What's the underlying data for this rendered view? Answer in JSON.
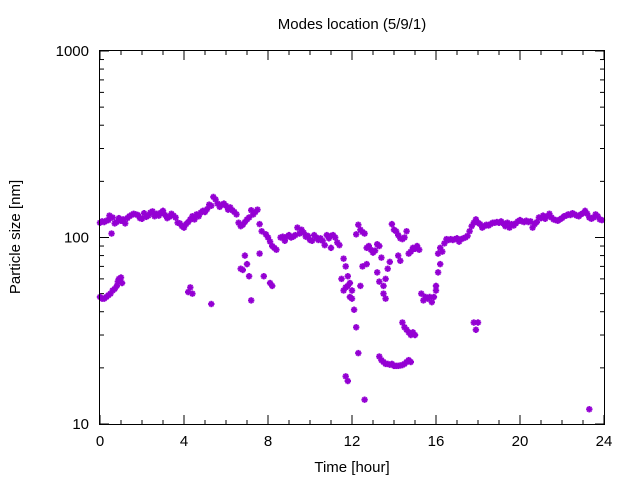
{
  "chart_data": {
    "type": "scatter",
    "title": "Modes location (5/9/1)",
    "xlabel": "Time [hour]",
    "ylabel": "Particle size [nm]",
    "xlim": [
      0,
      24
    ],
    "ylim": [
      10,
      1000
    ],
    "yscale": "log",
    "grid": false,
    "legend": "none",
    "marker_color": "#9400d3",
    "x_ticks": [
      "0",
      "4",
      "8",
      "12",
      "16",
      "20",
      "24"
    ],
    "x_tick_values": [
      0,
      4,
      8,
      12,
      16,
      20,
      24
    ],
    "y_ticks": [
      "10",
      "100",
      "1000"
    ],
    "y_tick_values": [
      10,
      100,
      1000
    ],
    "series": [
      {
        "values": [
          [
            0.0,
            120
          ],
          [
            0.1,
            122
          ],
          [
            0.2,
            121
          ],
          [
            0.3,
            123
          ],
          [
            0.4,
            124
          ],
          [
            0.45,
            131
          ],
          [
            0.55,
            105
          ],
          [
            0.6,
            128
          ],
          [
            0.7,
            119
          ],
          [
            0.8,
            121
          ],
          [
            0.9,
            127
          ],
          [
            1.0,
            123
          ],
          [
            1.1,
            125
          ],
          [
            1.2,
            119
          ],
          [
            1.3,
            127
          ],
          [
            1.4,
            130
          ],
          [
            1.5,
            132
          ],
          [
            1.6,
            134
          ],
          [
            1.7,
            133
          ],
          [
            1.8,
            132
          ],
          [
            1.9,
            127
          ],
          [
            2.0,
            126
          ],
          [
            2.1,
            135
          ],
          [
            2.2,
            129
          ],
          [
            2.3,
            131
          ],
          [
            2.4,
            136
          ],
          [
            2.5,
            138
          ],
          [
            2.6,
            130
          ],
          [
            2.7,
            134
          ],
          [
            2.8,
            131
          ],
          [
            2.9,
            136
          ],
          [
            3.0,
            139
          ],
          [
            3.1,
            132
          ],
          [
            3.2,
            127
          ],
          [
            3.3,
            129
          ],
          [
            3.4,
            134
          ],
          [
            3.5,
            131
          ],
          [
            3.6,
            128
          ],
          [
            3.7,
            120
          ],
          [
            3.8,
            119
          ],
          [
            3.9,
            115
          ],
          [
            4.0,
            113
          ],
          [
            4.1,
            118
          ],
          [
            4.2,
            121
          ],
          [
            4.3,
            125
          ],
          [
            4.4,
            130
          ],
          [
            4.5,
            125
          ],
          [
            4.6,
            133
          ],
          [
            4.7,
            130
          ],
          [
            4.8,
            136
          ],
          [
            4.9,
            139
          ],
          [
            5.0,
            137
          ],
          [
            5.1,
            142
          ],
          [
            5.2,
            150
          ],
          [
            5.3,
            148
          ],
          [
            5.4,
            165
          ],
          [
            5.5,
            160
          ],
          [
            5.6,
            152
          ],
          [
            5.7,
            146
          ],
          [
            5.8,
            150
          ],
          [
            5.9,
            152
          ],
          [
            6.0,
            148
          ],
          [
            6.1,
            141
          ],
          [
            6.2,
            145
          ],
          [
            6.3,
            140
          ],
          [
            6.4,
            137
          ],
          [
            6.5,
            133
          ],
          [
            6.6,
            120
          ],
          [
            6.7,
            115
          ],
          [
            6.8,
            117
          ],
          [
            6.9,
            121
          ],
          [
            7.0,
            125
          ],
          [
            7.1,
            128
          ],
          [
            7.2,
            140
          ],
          [
            7.3,
            133
          ],
          [
            7.4,
            137
          ],
          [
            7.5,
            141
          ],
          [
            7.6,
            118
          ],
          [
            7.7,
            108
          ],
          [
            7.9,
            104
          ],
          [
            8.0,
            100
          ],
          [
            8.1,
            95
          ],
          [
            8.2,
            90
          ],
          [
            8.3,
            88
          ],
          [
            8.4,
            86
          ],
          [
            8.6,
            100
          ],
          [
            8.7,
            101
          ],
          [
            8.8,
            96
          ],
          [
            8.9,
            101
          ],
          [
            9.0,
            103
          ],
          [
            9.1,
            100
          ],
          [
            9.2,
            101
          ],
          [
            9.3,
            103
          ],
          [
            9.4,
            113
          ],
          [
            9.5,
            105
          ],
          [
            9.6,
            110
          ],
          [
            9.7,
            106
          ],
          [
            9.8,
            101
          ],
          [
            9.9,
            102
          ],
          [
            10.0,
            97
          ],
          [
            10.1,
            96
          ],
          [
            10.2,
            103
          ],
          [
            10.3,
            100
          ],
          [
            10.4,
            97
          ],
          [
            10.5,
            99
          ],
          [
            10.6,
            96
          ],
          [
            10.7,
            91
          ],
          [
            10.8,
            103
          ],
          [
            10.9,
            99
          ],
          [
            11.0,
            102
          ],
          [
            11.1,
            103
          ],
          [
            11.2,
            100
          ],
          [
            11.3,
            94
          ],
          [
            11.4,
            91
          ],
          [
            11.6,
            77
          ],
          [
            11.7,
            70
          ],
          [
            11.8,
            62
          ],
          [
            11.9,
            57
          ],
          [
            12.0,
            52
          ],
          [
            12.2,
            104
          ],
          [
            12.3,
            117
          ],
          [
            12.4,
            110
          ],
          [
            12.5,
            107
          ],
          [
            12.6,
            105
          ],
          [
            12.7,
            88
          ],
          [
            12.8,
            90
          ],
          [
            12.9,
            86
          ],
          [
            13.0,
            83
          ],
          [
            13.1,
            85
          ],
          [
            13.2,
            92
          ],
          [
            13.3,
            90
          ],
          [
            13.4,
            78
          ],
          [
            13.5,
            55
          ],
          [
            13.6,
            60
          ],
          [
            13.7,
            68
          ],
          [
            13.8,
            74
          ],
          [
            13.9,
            118
          ],
          [
            14.0,
            110
          ],
          [
            14.1,
            108
          ],
          [
            14.2,
            103
          ],
          [
            14.3,
            99
          ],
          [
            14.4,
            98
          ],
          [
            14.5,
            100
          ],
          [
            14.6,
            108
          ],
          [
            14.7,
            82
          ],
          [
            14.8,
            84
          ],
          [
            14.9,
            88
          ],
          [
            15.0,
            87
          ],
          [
            15.1,
            90
          ],
          [
            15.2,
            86
          ],
          [
            15.3,
            50
          ],
          [
            15.4,
            46
          ],
          [
            15.5,
            48
          ],
          [
            15.6,
            47
          ],
          [
            15.7,
            48
          ],
          [
            15.8,
            45
          ],
          [
            15.9,
            48
          ],
          [
            16.0,
            52
          ],
          [
            16.1,
            82
          ],
          [
            16.2,
            88
          ],
          [
            16.3,
            84
          ],
          [
            16.4,
            93
          ],
          [
            16.5,
            98
          ],
          [
            16.6,
            97
          ],
          [
            16.7,
            98
          ],
          [
            16.8,
            97
          ],
          [
            16.9,
            98
          ],
          [
            17.0,
            99
          ],
          [
            17.1,
            95
          ],
          [
            17.2,
            98
          ],
          [
            17.3,
            99
          ],
          [
            17.4,
            100
          ],
          [
            17.5,
            102
          ],
          [
            17.6,
            108
          ],
          [
            17.7,
            115
          ],
          [
            17.8,
            120
          ],
          [
            17.9,
            125
          ],
          [
            18.0,
            120
          ],
          [
            18.1,
            118
          ],
          [
            18.2,
            113
          ],
          [
            18.3,
            115
          ],
          [
            18.4,
            117
          ],
          [
            18.5,
            116
          ],
          [
            18.6,
            118
          ],
          [
            18.7,
            120
          ],
          [
            18.8,
            120
          ],
          [
            18.9,
            121
          ],
          [
            19.0,
            120
          ],
          [
            19.1,
            122
          ],
          [
            19.2,
            119
          ],
          [
            19.3,
            115
          ],
          [
            19.4,
            120
          ],
          [
            19.5,
            113
          ],
          [
            19.6,
            118
          ],
          [
            19.7,
            116
          ],
          [
            19.8,
            119
          ],
          [
            19.9,
            122
          ],
          [
            20.0,
            124
          ],
          [
            20.1,
            122
          ],
          [
            20.2,
            121
          ],
          [
            20.3,
            123
          ],
          [
            20.4,
            121
          ],
          [
            20.5,
            122
          ],
          [
            20.6,
            113
          ],
          [
            20.7,
            118
          ],
          [
            20.8,
            121
          ],
          [
            20.9,
            128
          ],
          [
            21.0,
            127
          ],
          [
            21.1,
            131
          ],
          [
            21.2,
            126
          ],
          [
            21.3,
            130
          ],
          [
            21.4,
            134
          ],
          [
            21.5,
            128
          ],
          [
            21.6,
            125
          ],
          [
            21.7,
            124
          ],
          [
            21.8,
            123
          ],
          [
            21.9,
            125
          ],
          [
            22.0,
            127
          ],
          [
            22.1,
            130
          ],
          [
            22.2,
            131
          ],
          [
            22.3,
            133
          ],
          [
            22.4,
            132
          ],
          [
            22.5,
            135
          ],
          [
            22.6,
            133
          ],
          [
            22.7,
            131
          ],
          [
            22.8,
            130
          ],
          [
            22.9,
            133
          ],
          [
            23.0,
            135
          ],
          [
            23.1,
            139
          ],
          [
            23.2,
            134
          ],
          [
            23.3,
            128
          ],
          [
            23.4,
            126
          ],
          [
            23.5,
            128
          ],
          [
            23.6,
            133
          ],
          [
            23.7,
            130
          ],
          [
            23.8,
            125
          ],
          [
            23.9,
            124
          ]
        ]
      },
      {
        "values": [
          [
            0.0,
            48
          ],
          [
            0.1,
            47
          ],
          [
            0.2,
            47
          ],
          [
            0.3,
            48
          ],
          [
            0.4,
            49
          ],
          [
            0.5,
            50
          ],
          [
            0.6,
            52
          ],
          [
            0.7,
            53
          ],
          [
            0.8,
            55
          ],
          [
            0.85,
            58
          ],
          [
            0.9,
            60
          ],
          [
            1.0,
            61
          ],
          [
            1.05,
            57
          ],
          [
            4.2,
            51
          ],
          [
            4.3,
            54
          ],
          [
            4.4,
            50
          ],
          [
            5.3,
            44
          ],
          [
            6.7,
            68
          ],
          [
            6.8,
            67
          ],
          [
            6.9,
            80
          ],
          [
            7.0,
            72
          ],
          [
            7.1,
            62
          ],
          [
            7.2,
            46
          ],
          [
            7.6,
            82
          ],
          [
            7.8,
            62
          ],
          [
            8.1,
            57
          ],
          [
            8.2,
            55
          ],
          [
            11.0,
            88
          ],
          [
            11.5,
            60
          ],
          [
            11.6,
            52
          ],
          [
            11.7,
            54
          ],
          [
            11.8,
            55
          ],
          [
            11.9,
            48
          ],
          [
            12.0,
            47
          ],
          [
            12.1,
            41
          ],
          [
            12.2,
            33
          ],
          [
            12.3,
            24
          ],
          [
            12.4,
            55
          ],
          [
            12.5,
            70
          ],
          [
            12.7,
            72
          ],
          [
            13.2,
            65
          ],
          [
            13.3,
            58
          ],
          [
            13.5,
            50
          ],
          [
            13.6,
            47
          ],
          [
            14.2,
            80
          ],
          [
            14.3,
            75
          ],
          [
            14.4,
            35
          ],
          [
            14.5,
            33
          ],
          [
            14.6,
            32
          ],
          [
            14.7,
            31
          ],
          [
            14.8,
            30
          ],
          [
            14.9,
            31
          ],
          [
            15.0,
            30
          ],
          [
            16.0,
            55
          ],
          [
            16.1,
            65
          ],
          [
            16.2,
            72
          ],
          [
            17.8,
            35
          ],
          [
            17.9,
            32
          ],
          [
            18.0,
            35
          ]
        ]
      },
      {
        "values": [
          [
            11.7,
            18
          ],
          [
            11.8,
            17
          ],
          [
            12.6,
            13.5
          ],
          [
            13.3,
            23
          ],
          [
            13.4,
            22
          ],
          [
            13.5,
            21.5
          ],
          [
            13.6,
            21
          ],
          [
            13.7,
            21
          ],
          [
            13.8,
            20.8
          ],
          [
            13.9,
            21
          ],
          [
            14.0,
            20.5
          ],
          [
            14.1,
            20.5
          ],
          [
            14.2,
            20.5
          ],
          [
            14.3,
            20.6
          ],
          [
            14.4,
            20.7
          ],
          [
            14.5,
            21
          ],
          [
            14.6,
            21.5
          ],
          [
            14.7,
            22
          ],
          [
            14.8,
            21.5
          ],
          [
            23.3,
            12
          ]
        ]
      }
    ]
  }
}
